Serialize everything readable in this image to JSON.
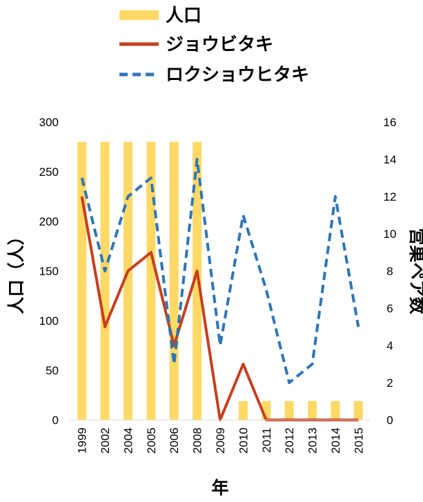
{
  "chart_data": {
    "type": "bar+line",
    "title": "",
    "categories": [
      "1999",
      "2002",
      "2004",
      "2005",
      "2006",
      "2008",
      "2009",
      "2010",
      "2011",
      "2012",
      "2013",
      "2014",
      "2015"
    ],
    "series": [
      {
        "name": "人口",
        "type": "bar",
        "axis": "left",
        "color": "#FFD966",
        "values": [
          280,
          280,
          280,
          280,
          280,
          280,
          0,
          19,
          19,
          19,
          19,
          19,
          19
        ]
      },
      {
        "name": "ジョウビタキ",
        "type": "line",
        "axis": "right",
        "color": "#C73E1D",
        "values": [
          12,
          5,
          8,
          9,
          4,
          8,
          0,
          3,
          0,
          0,
          0,
          0,
          0
        ]
      },
      {
        "name": "ロクショウヒタキ",
        "type": "dashed-line",
        "axis": "right",
        "color": "#2E75B6",
        "values": [
          13,
          8,
          12,
          13,
          3,
          14,
          4,
          11,
          7,
          2,
          3,
          12,
          5
        ]
      }
    ],
    "xlabel": "年",
    "ylabel": "人口（人）",
    "y2label": "営巣ペア数",
    "ylim": [
      0,
      300
    ],
    "y2lim": [
      0,
      16
    ],
    "yticks": [
      "0",
      "50",
      "100",
      "150",
      "200",
      "250",
      "300"
    ],
    "y2ticks": [
      "0",
      "2",
      "4",
      "6",
      "8",
      "10",
      "12",
      "14",
      "16"
    ],
    "grid": false,
    "legend_position": "top-center"
  }
}
